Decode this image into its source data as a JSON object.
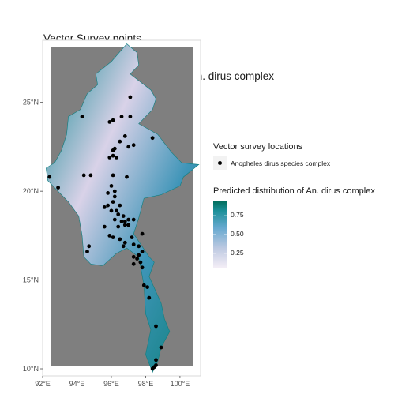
{
  "title": {
    "line1": "Vector Survey points",
    "line2": " + The predicted distribution of An. dirus complex"
  },
  "colors": {
    "panel_background": "#7f7f7f",
    "land_low": "#f3eef6",
    "land_high": "#016c59",
    "point": "#000000"
  },
  "map_data": {
    "type": "raster_map_with_points",
    "x_axis": {
      "range": [
        92.0,
        101.2
      ],
      "ticks": [
        92,
        94,
        96,
        98,
        100
      ],
      "tick_labels": [
        "92°E",
        "94°E",
        "96°E",
        "98°E",
        "100°E"
      ]
    },
    "y_axis": {
      "range": [
        9.6,
        28.5
      ],
      "ticks": [
        10,
        15,
        20,
        25
      ],
      "tick_labels": [
        "10°N",
        "15°N",
        "20°N",
        "25°N"
      ]
    },
    "outline": [
      [
        96.9,
        28.3
      ],
      [
        97.5,
        27.8
      ],
      [
        97.6,
        27.1
      ],
      [
        97.1,
        26.6
      ],
      [
        98.3,
        25.7
      ],
      [
        98.6,
        25.2
      ],
      [
        98.4,
        24.6
      ],
      [
        97.6,
        23.8
      ],
      [
        98.7,
        23.2
      ],
      [
        99.5,
        22.2
      ],
      [
        100.1,
        21.6
      ],
      [
        101.1,
        21.5
      ],
      [
        100.2,
        20.8
      ],
      [
        100.0,
        20.3
      ],
      [
        98.9,
        19.8
      ],
      [
        97.9,
        19.6
      ],
      [
        97.6,
        18.5
      ],
      [
        97.3,
        17.6
      ],
      [
        98.2,
        16.3
      ],
      [
        98.5,
        16.0
      ],
      [
        98.2,
        15.2
      ],
      [
        98.9,
        13.7
      ],
      [
        99.1,
        12.8
      ],
      [
        99.4,
        12.1
      ],
      [
        98.9,
        11.2
      ],
      [
        98.7,
        10.4
      ],
      [
        98.4,
        9.8
      ],
      [
        98.0,
        10.8
      ],
      [
        98.3,
        12.2
      ],
      [
        98.0,
        13.1
      ],
      [
        97.9,
        14.7
      ],
      [
        97.6,
        16.3
      ],
      [
        96.9,
        16.8
      ],
      [
        96.3,
        16.5
      ],
      [
        95.5,
        15.8
      ],
      [
        94.8,
        15.9
      ],
      [
        94.4,
        16.3
      ],
      [
        94.3,
        17.5
      ],
      [
        94.1,
        18.6
      ],
      [
        93.5,
        19.4
      ],
      [
        93.0,
        19.9
      ],
      [
        92.3,
        20.6
      ],
      [
        92.2,
        21.3
      ],
      [
        92.7,
        21.6
      ],
      [
        93.1,
        22.3
      ],
      [
        93.4,
        23.2
      ],
      [
        93.5,
        24.2
      ],
      [
        94.2,
        24.6
      ],
      [
        94.6,
        25.5
      ],
      [
        95.2,
        26.0
      ],
      [
        95.1,
        26.6
      ],
      [
        96.0,
        27.3
      ],
      [
        96.9,
        28.3
      ]
    ],
    "points": [
      [
        97.1,
        25.3
      ],
      [
        94.3,
        24.2
      ],
      [
        96.6,
        24.2
      ],
      [
        97.1,
        24.2
      ],
      [
        96.1,
        24.0
      ],
      [
        95.9,
        23.9
      ],
      [
        96.8,
        23.1
      ],
      [
        98.4,
        23.0
      ],
      [
        96.5,
        22.8
      ],
      [
        97.0,
        22.5
      ],
      [
        97.3,
        22.6
      ],
      [
        96.2,
        22.4
      ],
      [
        96.1,
        22.3
      ],
      [
        96.1,
        22.0
      ],
      [
        95.9,
        21.9
      ],
      [
        96.3,
        21.9
      ],
      [
        94.4,
        20.9
      ],
      [
        94.8,
        20.9
      ],
      [
        96.1,
        20.9
      ],
      [
        96.9,
        20.8
      ],
      [
        92.4,
        20.8
      ],
      [
        92.9,
        20.2
      ],
      [
        96.0,
        20.3
      ],
      [
        96.2,
        20.0
      ],
      [
        95.8,
        19.9
      ],
      [
        96.2,
        19.7
      ],
      [
        96.1,
        19.4
      ],
      [
        96.5,
        19.2
      ],
      [
        95.6,
        19.1
      ],
      [
        95.8,
        19.2
      ],
      [
        96.0,
        18.9
      ],
      [
        96.3,
        18.9
      ],
      [
        96.4,
        18.7
      ],
      [
        96.7,
        18.6
      ],
      [
        96.2,
        18.4
      ],
      [
        96.6,
        18.3
      ],
      [
        96.8,
        18.3
      ],
      [
        97.0,
        18.4
      ],
      [
        97.3,
        18.4
      ],
      [
        96.4,
        18.0
      ],
      [
        96.8,
        18.1
      ],
      [
        97.0,
        18.1
      ],
      [
        95.6,
        18.0
      ],
      [
        95.9,
        17.5
      ],
      [
        96.1,
        17.4
      ],
      [
        96.5,
        17.3
      ],
      [
        96.8,
        17.1
      ],
      [
        97.2,
        17.4
      ],
      [
        97.8,
        17.6
      ],
      [
        94.7,
        16.9
      ],
      [
        94.6,
        16.6
      ],
      [
        96.7,
        16.9
      ],
      [
        97.3,
        17.0
      ],
      [
        97.6,
        16.9
      ],
      [
        97.8,
        16.6
      ],
      [
        97.6,
        16.4
      ],
      [
        97.3,
        16.3
      ],
      [
        97.5,
        16.2
      ],
      [
        97.7,
        16.0
      ],
      [
        97.3,
        15.9
      ],
      [
        97.8,
        15.7
      ],
      [
        97.9,
        14.7
      ],
      [
        98.1,
        14.6
      ],
      [
        98.2,
        14.0
      ],
      [
        98.6,
        12.4
      ],
      [
        98.9,
        11.2
      ],
      [
        98.6,
        10.5
      ],
      [
        98.6,
        10.2
      ],
      [
        98.4,
        10.0
      ],
      [
        98.5,
        10.1
      ]
    ]
  },
  "legend": {
    "points_title": "Vector survey locations",
    "points_label": "Anopheles dirus species complex",
    "fill_title": "Predicted distribution of An. dirus complex",
    "fill_ticks": [
      0.25,
      0.5,
      0.75
    ],
    "fill_tick_labels": [
      "0.25",
      "0.50",
      "0.75"
    ],
    "fill_range": [
      0.05,
      0.95
    ]
  }
}
